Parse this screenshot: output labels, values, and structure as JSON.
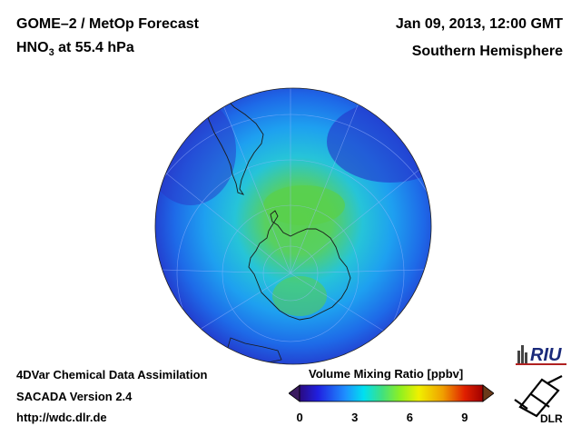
{
  "header": {
    "title_line1": "GOME–2 / MetOp Forecast",
    "species": "HNO",
    "species_subscript": "3",
    "pressure_level": " at 55.4 hPa",
    "date_time": "Jan 09, 2013, 12:00 GMT",
    "hemisphere": "Southern Hemisphere"
  },
  "footer": {
    "line1": "4DVar Chemical Data Assimilation",
    "line2": "SACADA Version 2.4",
    "line3": "http://wdc.dlr.de"
  },
  "colorbar": {
    "title": "Volume Mixing Ratio [ppbv]",
    "tick_labels": [
      "0",
      "3",
      "6",
      "9"
    ],
    "tick_values": [
      0,
      3,
      6,
      9
    ],
    "range": [
      0,
      10
    ],
    "colors": [
      "#2a0a80",
      "#2020e0",
      "#1e90ff",
      "#00e0f0",
      "#40e080",
      "#90f020",
      "#f0f000",
      "#f0a000",
      "#e02000",
      "#a00000"
    ]
  },
  "map": {
    "projection": "polar stereographic",
    "ocean_colors": {
      "outer": "#2432c8",
      "mid": "#1e78f0",
      "inner": "#20c8e8",
      "core": "#5ad050"
    }
  },
  "logos": {
    "riu": "RIU",
    "dlr": "DLR"
  }
}
